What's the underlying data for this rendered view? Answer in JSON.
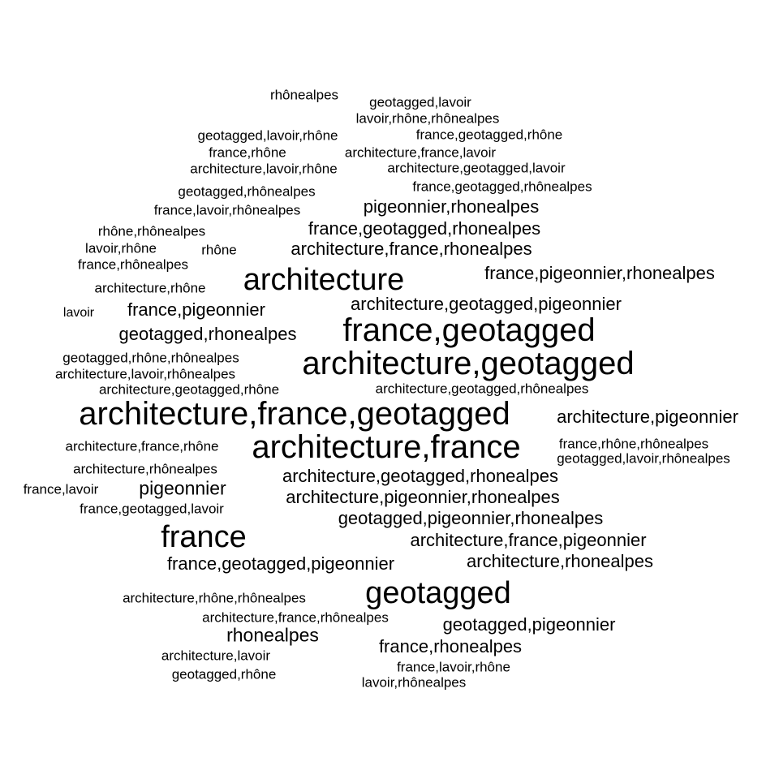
{
  "words": [
    "rhônealpes",
    "geotagged,lavoir",
    "lavoir,rhône,rhônealpes",
    "geotagged,lavoir,rhône",
    "france,geotagged,rhône",
    "france,rhône",
    "architecture,france,lavoir",
    "architecture,lavoir,rhône",
    "architecture,geotagged,lavoir",
    "france,geotagged,rhônealpes",
    "geotagged,rhônealpes",
    "pigeonnier,rhonealpes",
    "france,lavoir,rhônealpes",
    "france,geotagged,rhonealpes",
    "rhône,rhônealpes",
    "lavoir,rhône",
    "rhône",
    "architecture,france,rhonealpes",
    "france,rhônealpes",
    "france,pigeonnier,rhonealpes",
    "architecture",
    "architecture,rhône",
    "architecture,geotagged,pigeonnier",
    "lavoir",
    "france,pigeonnier",
    "geotagged,rhonealpes",
    "france,geotagged",
    "geotagged,rhône,rhônealpes",
    "architecture,geotagged",
    "architecture,lavoir,rhônealpes",
    "architecture,geotagged,rhône",
    "architecture,geotagged,rhônealpes",
    "architecture,france,geotagged",
    "architecture,pigeonnier",
    "architecture,france,rhône",
    "architecture,france",
    "france,rhône,rhônealpes",
    "geotagged,lavoir,rhônealpes",
    "architecture,rhônealpes",
    "architecture,geotagged,rhonealpes",
    "france,lavoir",
    "pigeonnier",
    "architecture,pigeonnier,rhonealpes",
    "france,geotagged,lavoir",
    "geotagged,pigeonnier,rhonealpes",
    "france",
    "architecture,france,pigeonnier",
    "france,geotagged,pigeonnier",
    "architecture,rhonealpes",
    "geotagged",
    "architecture,rhône,rhônealpes",
    "architecture,france,rhônealpes",
    "geotagged,pigeonnier",
    "rhonealpes",
    "france,rhonealpes",
    "architecture,lavoir",
    "france,lavoir,rhône",
    "geotagged,rhône",
    "lavoir,rhônealpes"
  ]
}
